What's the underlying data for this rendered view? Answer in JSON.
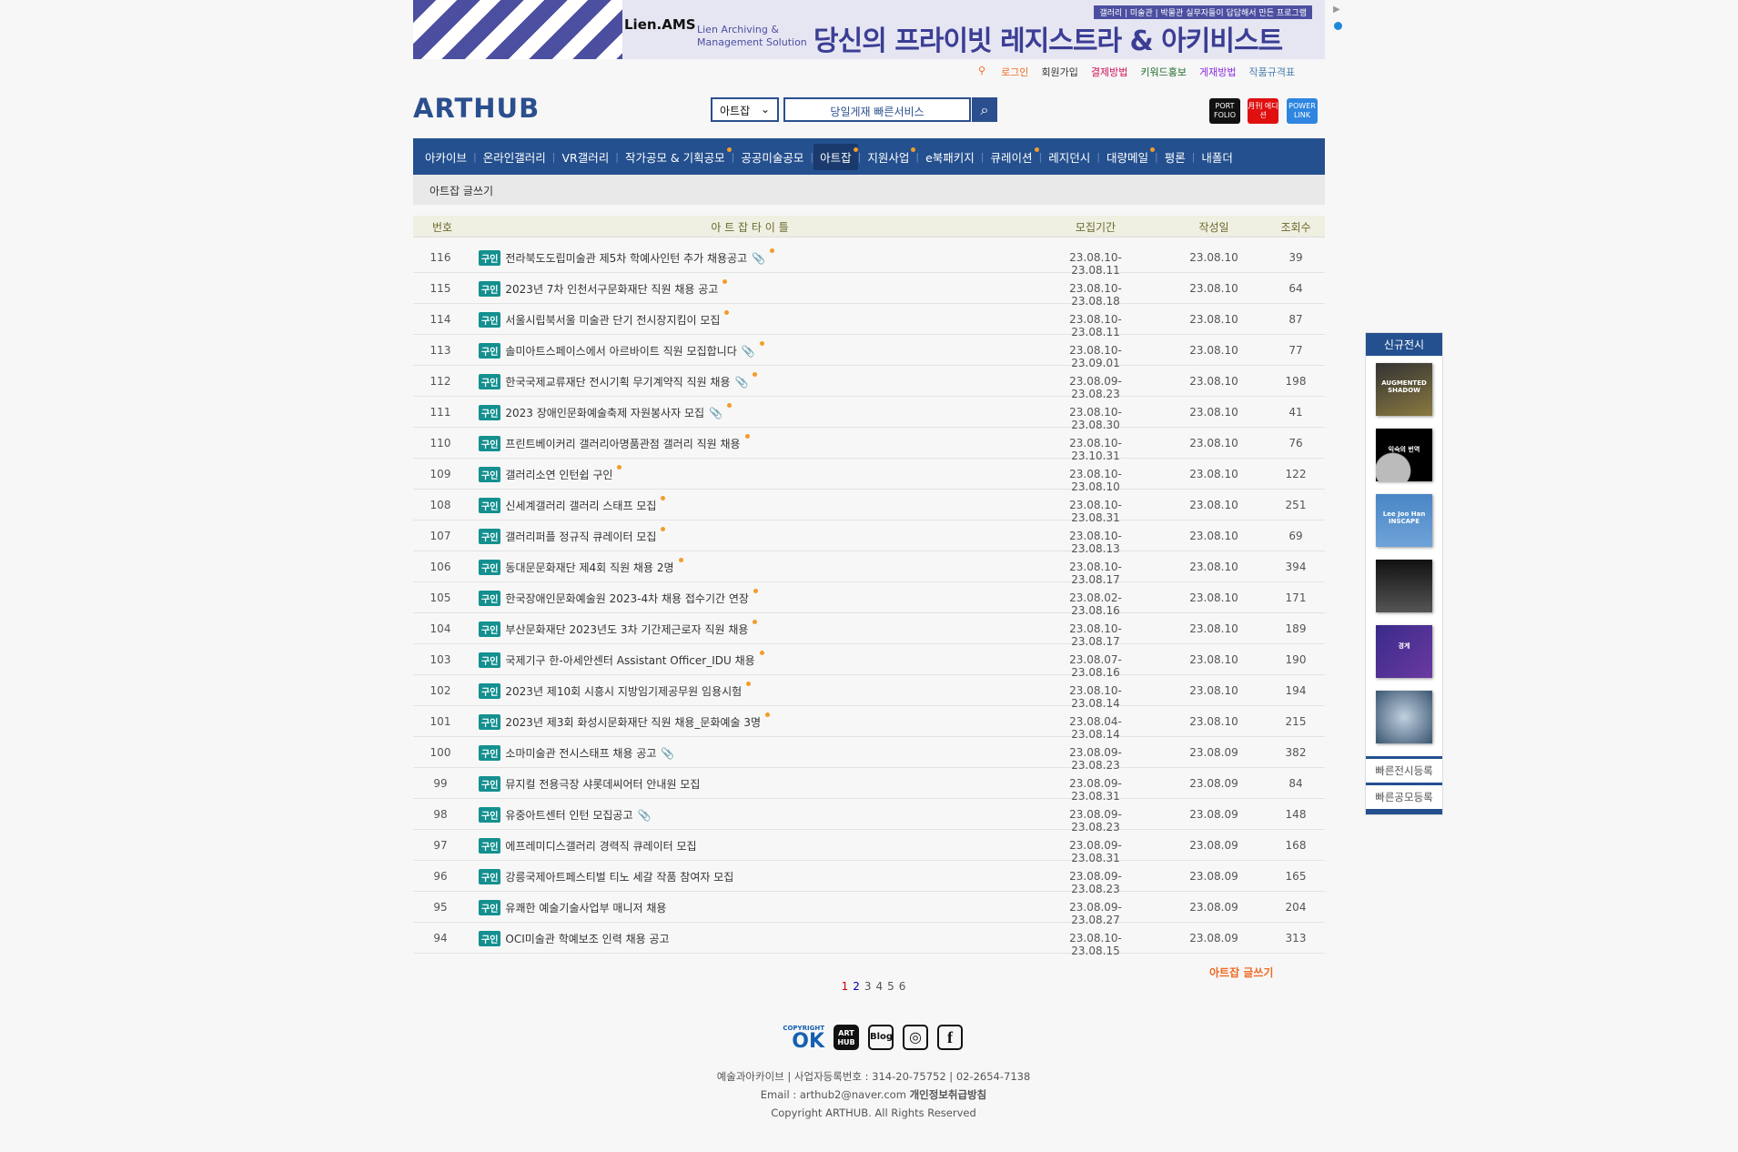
{
  "banner": {
    "brand": "Lien.AMS",
    "solution": "Lien Archiving & Management Solution",
    "tag": "갤러리 | 미술관 | 박물관 실무자들이 답답해서 만든 프로그램",
    "headline": "당신의 프라이빗 레지스트라 & 아키비스트"
  },
  "toplinks": [
    {
      "label": "로그인",
      "color": "#f06a24"
    },
    {
      "label": "회원가입",
      "color": "#333333"
    },
    {
      "label": "결제방법",
      "color": "#d0105a"
    },
    {
      "label": "키워드홍보",
      "color": "#1d6b2a"
    },
    {
      "label": "게재방법",
      "color": "#8a2be2"
    },
    {
      "label": "작품규격표",
      "color": "#4a7fb0"
    }
  ],
  "logo": "ARTHUB",
  "search": {
    "category": "아트잡",
    "placeholder": "당일게재 빠른서비스"
  },
  "quick": [
    {
      "label": "PORT FOLIO",
      "color": "#111111"
    },
    {
      "label": "月刊 에디션",
      "color": "#e01010"
    },
    {
      "label": "POWER LINK",
      "color": "#2f86e0"
    }
  ],
  "nav": [
    {
      "label": "아카이브",
      "dot": false
    },
    {
      "label": "온라인갤러리",
      "dot": false
    },
    {
      "label": "VR갤러리",
      "dot": false
    },
    {
      "label": "작가공모 & 기획공모",
      "dot": true
    },
    {
      "label": "공공미술공모",
      "dot": false
    },
    {
      "label": "아트잡",
      "dot": true,
      "active": true
    },
    {
      "label": "지원사업",
      "dot": true
    },
    {
      "label": "e북패키지",
      "dot": false
    },
    {
      "label": "큐레이션",
      "dot": true
    },
    {
      "label": "레지던시",
      "dot": false
    },
    {
      "label": "대량메일",
      "dot": true
    },
    {
      "label": "평론",
      "dot": false
    },
    {
      "label": "내폴더",
      "dot": false
    }
  ],
  "sub": {
    "write": "아트잡 글쓰기"
  },
  "table": {
    "headers": [
      "번호",
      "아 트 잡 타 이 틀",
      "모집기간",
      "작성일",
      "조회수"
    ],
    "badge": "구인",
    "rows": [
      [
        "116",
        "전라북도도립미술관 제5차 학예사인턴 추가 채용공고",
        "23.08.10-23.08.11",
        "23.08.10",
        "39",
        true,
        true
      ],
      [
        "115",
        "2023년 7차 인천서구문화재단 직원 채용 공고",
        "23.08.10-23.08.18",
        "23.08.10",
        "64",
        false,
        true
      ],
      [
        "114",
        "서울시립북서울 미술관 단기 전시장지킴이 모집",
        "23.08.10-23.08.11",
        "23.08.10",
        "87",
        false,
        true
      ],
      [
        "113",
        "솔미아트스페이스에서 아르바이트 직원 모집합니다",
        "23.08.10-23.09.01",
        "23.08.10",
        "77",
        true,
        true
      ],
      [
        "112",
        "한국국제교류재단 전시기획 무기계약직 직원 채용",
        "23.08.09-23.08.23",
        "23.08.10",
        "198",
        true,
        true
      ],
      [
        "111",
        "2023 장애인문화예술축제 자원봉사자 모집",
        "23.08.10-23.08.30",
        "23.08.10",
        "41",
        true,
        true
      ],
      [
        "110",
        "프린트베이커리 갤러리아명품관점 갤러리 직원 채용",
        "23.08.10-23.10.31",
        "23.08.10",
        "76",
        false,
        true
      ],
      [
        "109",
        "갤러리소연 인턴쉽 구인",
        "23.08.10-23.08.10",
        "23.08.10",
        "122",
        false,
        true
      ],
      [
        "108",
        "신세계갤러리 갤러리 스태프 모집",
        "23.08.10-23.08.31",
        "23.08.10",
        "251",
        false,
        true
      ],
      [
        "107",
        "갤러리퍼플 정규직 큐레이터 모집",
        "23.08.10-23.08.13",
        "23.08.10",
        "69",
        false,
        true
      ],
      [
        "106",
        "동대문문화재단 제4회 직원 채용 2명",
        "23.08.10-23.08.17",
        "23.08.10",
        "394",
        false,
        true
      ],
      [
        "105",
        "한국장애인문화예술원 2023-4차 채용 접수기간 연장",
        "23.08.02-23.08.16",
        "23.08.10",
        "171",
        false,
        true
      ],
      [
        "104",
        "부산문화재단 2023년도 3차 기간제근로자 직원 채용",
        "23.08.10-23.08.17",
        "23.08.10",
        "189",
        false,
        true
      ],
      [
        "103",
        "국제기구 한-아세안센터 Assistant Officer_IDU 채용",
        "23.08.07-23.08.16",
        "23.08.10",
        "190",
        false,
        true
      ],
      [
        "102",
        "2023년 제10회 시흥시 지방임기제공무원 임용시험",
        "23.08.10-23.08.14",
        "23.08.10",
        "194",
        false,
        true
      ],
      [
        "101",
        "2023년 제3회 화성시문화재단 직원 채용_문화예술 3명",
        "23.08.04-23.08.14",
        "23.08.10",
        "215",
        false,
        true
      ],
      [
        "100",
        "소마미술관 전시스태프 채용 공고",
        "23.08.09-23.08.23",
        "23.08.09",
        "382",
        true,
        false
      ],
      [
        "99",
        "뮤지컬 전용극장 샤롯데씨어터 안내원 모집",
        "23.08.09-23.08.31",
        "23.08.09",
        "84",
        false,
        false
      ],
      [
        "98",
        "유중아트센터 인턴 모집공고",
        "23.08.09-23.08.23",
        "23.08.09",
        "148",
        true,
        false
      ],
      [
        "97",
        "에프레미디스갤러리 경력직 큐레이터 모집",
        "23.08.09-23.08.31",
        "23.08.09",
        "168",
        false,
        false
      ],
      [
        "96",
        "강릉국제아트페스티벌 티노 세갈 작품 참여자 모집",
        "23.08.09-23.08.23",
        "23.08.09",
        "165",
        false,
        false
      ],
      [
        "95",
        "유쾌한 예술기술사업부 매니저 채용",
        "23.08.09-23.08.27",
        "23.08.09",
        "204",
        false,
        false
      ],
      [
        "94",
        "OCI미술관 학예보조 인력 채용 공고",
        "23.08.10-23.08.15",
        "23.08.09",
        "313",
        false,
        false
      ]
    ]
  },
  "write_link": "아트잡 글쓰기",
  "pager": {
    "pages": [
      "1",
      "2",
      "3",
      "4",
      "5",
      "6"
    ],
    "current": "1"
  },
  "social": [
    "COPYRIGHT OK",
    "ART HUB",
    "Blog",
    "instagram-icon",
    "facebook-icon"
  ],
  "footer": {
    "line1": "예술과아카이브 | 사업자등록번호 : 314-20-75752 | 02-2654-7138",
    "email": "Email : arthub2@naver.com",
    "privacy": "개인정보취급방침",
    "copyright": "Copyright ARTHUB. All Rights Reserved"
  },
  "side": {
    "title": "신규전시",
    "thumbs": [
      "AUGMENTED SHADOW",
      "익숙의 번역",
      "Lee Joo Han INSCAPE",
      "",
      "경계",
      ""
    ],
    "links": [
      "빠른전시등록",
      "빠른공모등록"
    ]
  }
}
